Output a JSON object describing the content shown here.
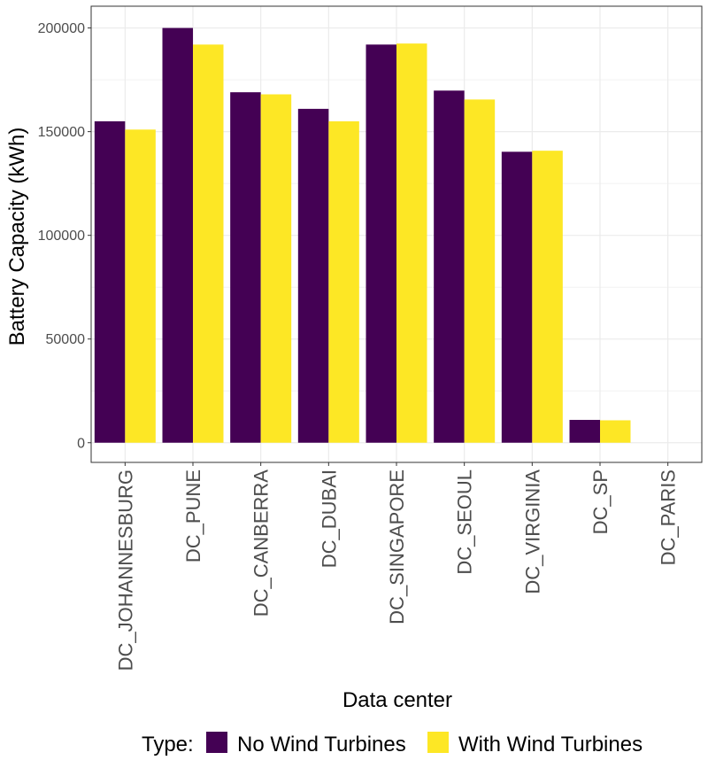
{
  "chart_data": {
    "type": "bar",
    "categories": [
      "DC_JOHANNESBURG",
      "DC_PUNE",
      "DC_CANBERRA",
      "DC_DUBAI",
      "DC_SINGAPORE",
      "DC_SEOUL",
      "DC_VIRGINIA",
      "DC_SP",
      "DC_PARIS"
    ],
    "series": [
      {
        "name": "No Wind Turbines",
        "color": "#440154",
        "values": [
          155000,
          200000,
          169000,
          161000,
          192000,
          169800,
          140300,
          11000,
          0
        ]
      },
      {
        "name": "With Wind Turbines",
        "color": "#FDE725",
        "values": [
          151000,
          192000,
          168000,
          155000,
          192500,
          165500,
          140800,
          10800,
          0
        ]
      }
    ],
    "xlabel": "Data center",
    "ylabel": "Battery Capacity (kWh)",
    "ylim": [
      -9500,
      210500
    ],
    "yticks": [
      0,
      50000,
      100000,
      150000,
      200000
    ],
    "ytick_labels": [
      "0",
      "50000",
      "100000",
      "150000",
      "200000"
    ],
    "legend": {
      "title": "Type:",
      "position": "bottom"
    },
    "grid": true
  }
}
